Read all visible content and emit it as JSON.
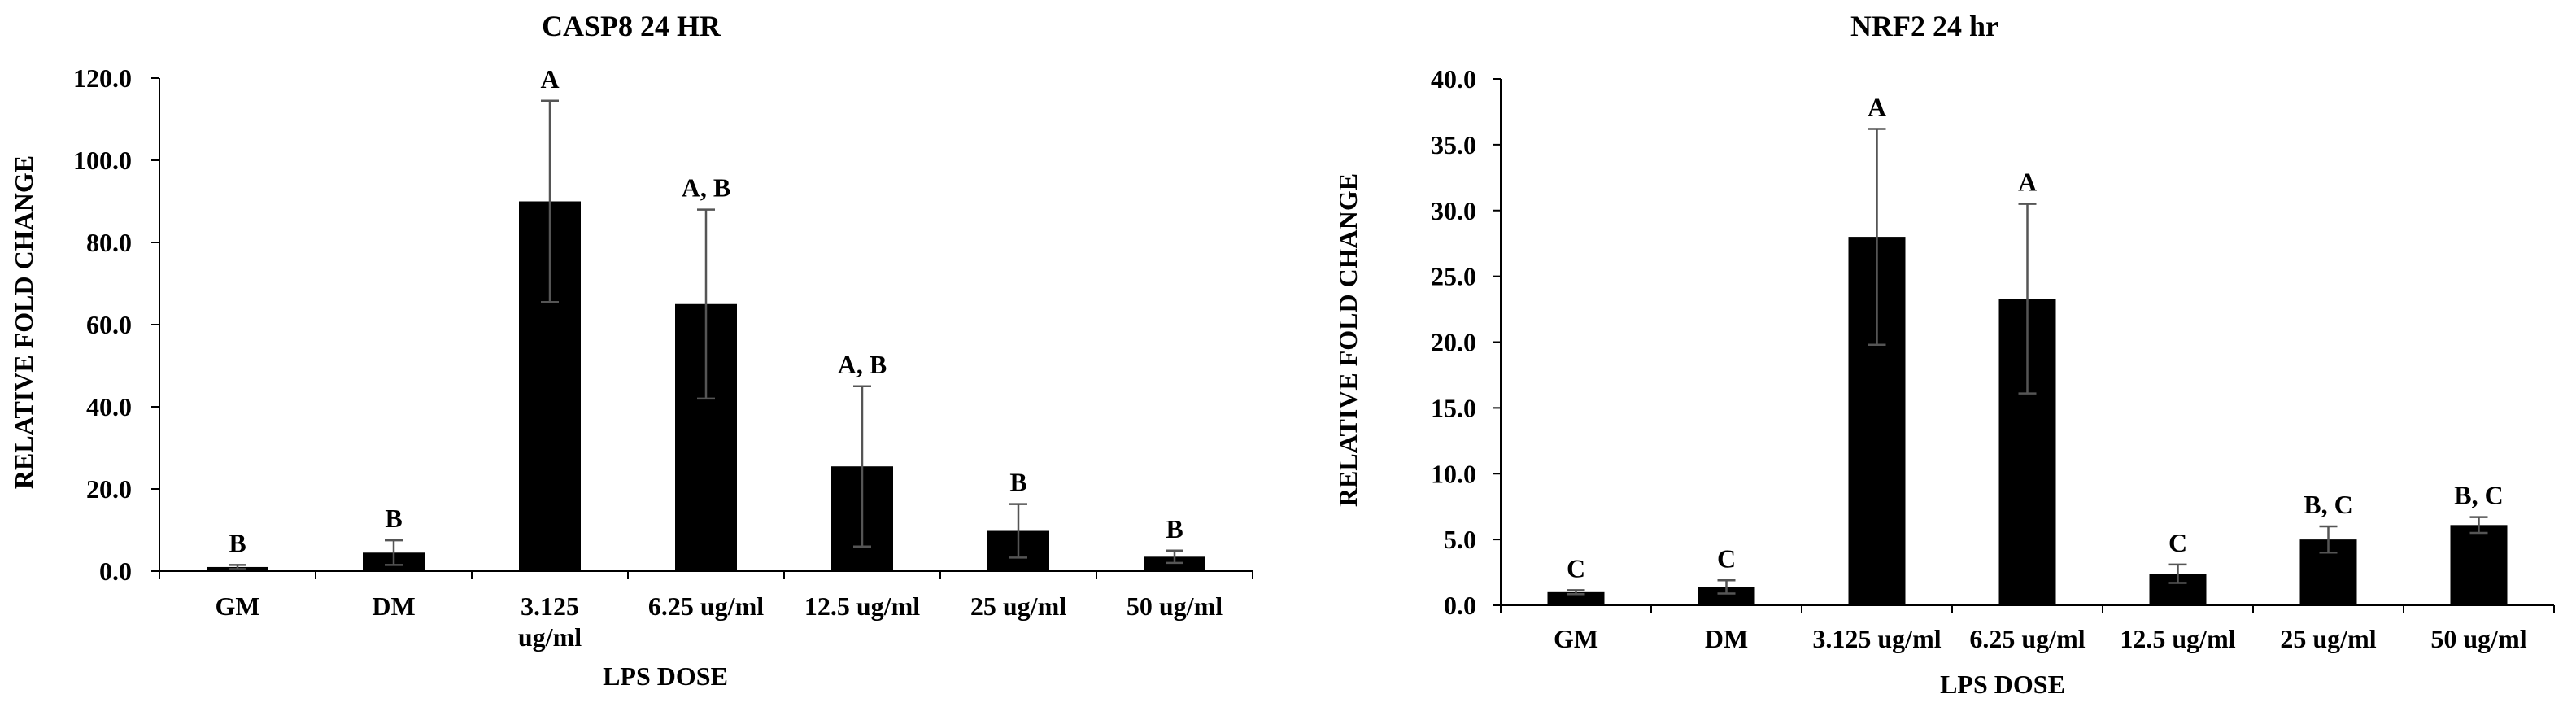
{
  "chart_data": [
    {
      "type": "bar",
      "title": "CASP8 24 HR",
      "xlabel": "LPS DOSE",
      "ylabel": "RELATIVE FOLD CHANGE",
      "ylim": [
        0,
        120
      ],
      "yticks": [
        "0.0",
        "20.0",
        "40.0",
        "60.0",
        "80.0",
        "100.0",
        "120.0"
      ],
      "categories": [
        [
          "GM"
        ],
        [
          "DM"
        ],
        [
          "3.125",
          "ug/ml"
        ],
        [
          "6.25 ug/ml"
        ],
        [
          "12.5 ug/ml"
        ],
        [
          "25 ug/ml"
        ],
        [
          "50 ug/ml"
        ]
      ],
      "values": [
        1.0,
        4.5,
        90.0,
        65.0,
        25.5,
        9.8,
        3.5
      ],
      "errors": [
        0.5,
        3.0,
        24.5,
        23.0,
        19.5,
        6.5,
        1.5
      ],
      "annotations": [
        "B",
        "B",
        "A",
        "A, B",
        "A, B",
        "B",
        "B"
      ],
      "bar_color": "#000000",
      "grid": false
    },
    {
      "type": "bar",
      "title": "NRF2 24 hr",
      "xlabel": "LPS DOSE",
      "ylabel": "RELATIVE FOLD CHANGE",
      "ylim": [
        0,
        40
      ],
      "yticks": [
        "0.0",
        "5.0",
        "10.0",
        "15.0",
        "20.0",
        "25.0",
        "30.0",
        "35.0",
        "40.0"
      ],
      "categories": [
        [
          "GM"
        ],
        [
          "DM"
        ],
        [
          "3.125 ug/ml"
        ],
        [
          "6.25 ug/ml"
        ],
        [
          "12.5 ug/ml"
        ],
        [
          "25 ug/ml"
        ],
        [
          "50 ug/ml"
        ]
      ],
      "values": [
        1.0,
        1.4,
        28.0,
        23.3,
        2.4,
        5.0,
        6.1
      ],
      "errors": [
        0.15,
        0.5,
        8.2,
        7.2,
        0.7,
        1.0,
        0.6
      ],
      "annotations": [
        "C",
        "C",
        "A",
        "A",
        "C",
        "B, C",
        "B, C"
      ],
      "bar_color": "#000000",
      "grid": false
    }
  ]
}
